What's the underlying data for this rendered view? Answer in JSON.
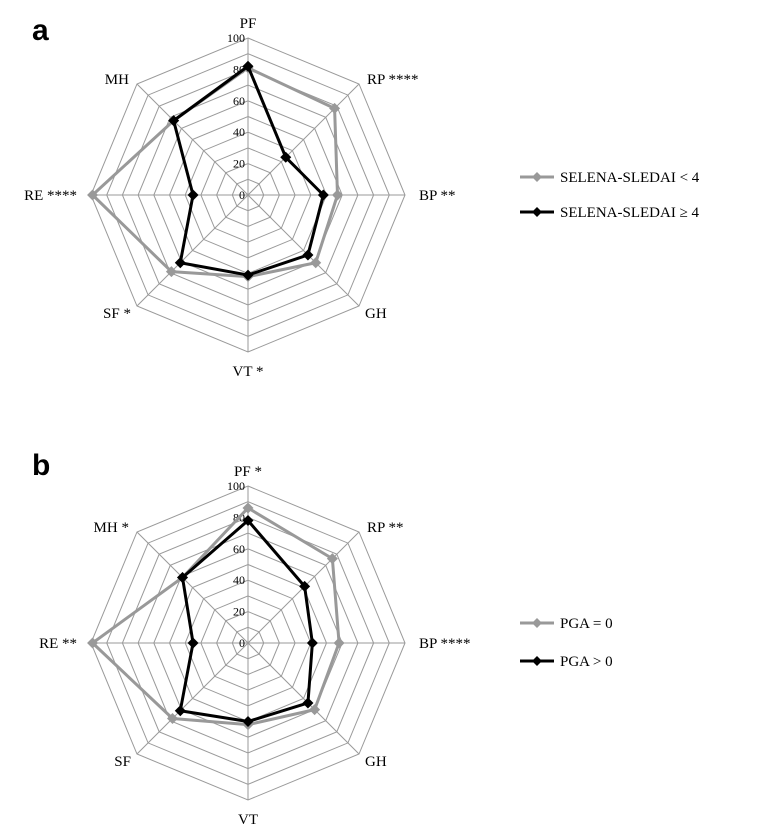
{
  "chart_data": [
    {
      "type": "radar",
      "panel": "a",
      "axes": [
        "PF",
        "RP ****",
        "BP **",
        "GH",
        "VT *",
        "SF *",
        "RE ****",
        "MH"
      ],
      "ticks": [
        "0",
        "20",
        "40",
        "60",
        "80",
        "100"
      ],
      "rmin": 0,
      "rmax": 100,
      "grid": true,
      "legend_position": "right",
      "series": [
        {
          "name": "SELENA-SLEDAI < 4",
          "color": "#999999",
          "values": [
            81,
            78,
            57,
            61,
            52,
            69,
            99,
            67
          ]
        },
        {
          "name": "SELENA-SLEDAI ≥ 4",
          "color": "#000000",
          "values": [
            82,
            34,
            48,
            54,
            51,
            61,
            35,
            67
          ]
        }
      ]
    },
    {
      "type": "radar",
      "panel": "b",
      "axes": [
        "PF *",
        "RP **",
        "BP ****",
        "GH",
        "VT",
        "SF",
        "RE **",
        "MH *"
      ],
      "ticks": [
        "0",
        "20",
        "40",
        "60",
        "80",
        "100"
      ],
      "rmin": 0,
      "rmax": 100,
      "grid": true,
      "legend_position": "right",
      "series": [
        {
          "name": "PGA = 0",
          "color": "#999999",
          "values": [
            86,
            76,
            58,
            60,
            52,
            68,
            99,
            59
          ]
        },
        {
          "name": "PGA > 0",
          "color": "#000000",
          "values": [
            78,
            51,
            41,
            54,
            50,
            61,
            35,
            59
          ]
        }
      ]
    }
  ]
}
